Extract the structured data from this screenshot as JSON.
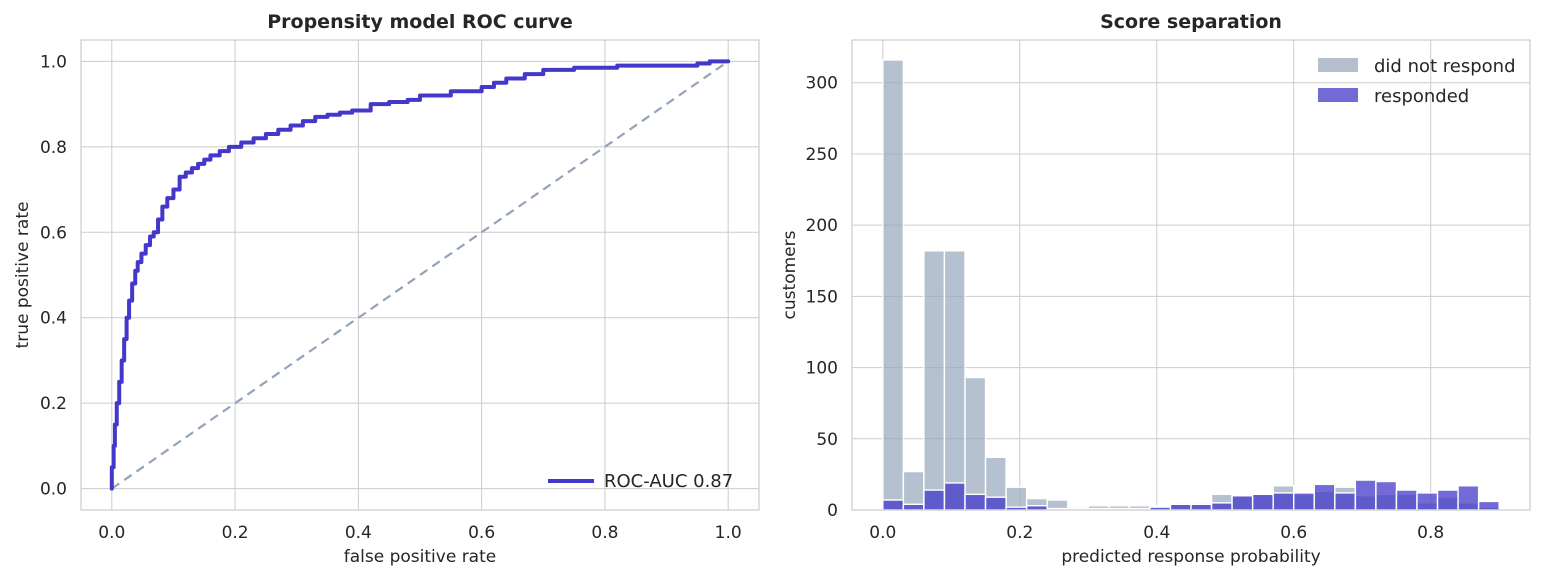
{
  "chart_data": [
    {
      "type": "line",
      "title": "Propensity model ROC curve",
      "xlabel": "false positive rate",
      "ylabel": "true positive rate",
      "xlim": [
        -0.05,
        1.05
      ],
      "ylim": [
        -0.05,
        1.05
      ],
      "xticks": [
        0.0,
        0.2,
        0.4,
        0.6,
        0.8,
        1.0
      ],
      "xtick_labels": [
        "0.0",
        "0.2",
        "0.4",
        "0.6",
        "0.8",
        "1.0"
      ],
      "yticks": [
        0.0,
        0.2,
        0.4,
        0.6,
        0.8,
        1.0
      ],
      "ytick_labels": [
        "0.0",
        "0.2",
        "0.4",
        "0.6",
        "0.8",
        "1.0"
      ],
      "grid": true,
      "legend_position": "lower-right",
      "series": [
        {
          "name": "ROC-AUC 0.87",
          "color": "#4338ca",
          "style": "solid",
          "x": [
            0.0,
            0.0,
            0.003,
            0.005,
            0.008,
            0.012,
            0.016,
            0.02,
            0.024,
            0.028,
            0.033,
            0.038,
            0.042,
            0.048,
            0.055,
            0.062,
            0.068,
            0.075,
            0.082,
            0.09,
            0.1,
            0.11,
            0.12,
            0.13,
            0.14,
            0.15,
            0.16,
            0.175,
            0.19,
            0.21,
            0.23,
            0.25,
            0.27,
            0.29,
            0.31,
            0.33,
            0.35,
            0.37,
            0.39,
            0.42,
            0.45,
            0.48,
            0.5,
            0.55,
            0.6,
            0.62,
            0.64,
            0.67,
            0.7,
            0.75,
            0.8,
            0.82,
            0.85,
            0.9,
            0.95,
            0.97,
            1.0
          ],
          "y": [
            0.0,
            0.05,
            0.1,
            0.15,
            0.2,
            0.25,
            0.3,
            0.35,
            0.4,
            0.44,
            0.48,
            0.51,
            0.53,
            0.55,
            0.57,
            0.59,
            0.6,
            0.63,
            0.66,
            0.68,
            0.7,
            0.73,
            0.74,
            0.75,
            0.76,
            0.77,
            0.78,
            0.79,
            0.8,
            0.81,
            0.82,
            0.83,
            0.84,
            0.85,
            0.86,
            0.87,
            0.875,
            0.88,
            0.885,
            0.9,
            0.905,
            0.91,
            0.92,
            0.93,
            0.94,
            0.95,
            0.96,
            0.97,
            0.98,
            0.985,
            0.985,
            0.99,
            0.99,
            0.99,
            0.995,
            1.0,
            1.0
          ]
        },
        {
          "name": "",
          "color": "#94a3b8",
          "style": "dashed",
          "x": [
            0.0,
            1.0
          ],
          "y": [
            0.0,
            1.0
          ]
        }
      ]
    },
    {
      "type": "bar",
      "subtype": "histogram",
      "title": "Score separation",
      "xlabel": "predicted response probability",
      "ylabel": "customers",
      "xlim": [
        -0.045,
        0.945
      ],
      "ylim": [
        0,
        330
      ],
      "xticks": [
        0.0,
        0.2,
        0.4,
        0.6,
        0.8
      ],
      "xtick_labels": [
        "0.0",
        "0.2",
        "0.4",
        "0.6",
        "0.8"
      ],
      "yticks": [
        0,
        50,
        100,
        150,
        200,
        250,
        300
      ],
      "ytick_labels": [
        "0",
        "50",
        "100",
        "150",
        "200",
        "250",
        "300"
      ],
      "grid": true,
      "legend_position": "top-right",
      "bin_edges": [
        0.0,
        0.03,
        0.06,
        0.09,
        0.12,
        0.15,
        0.18,
        0.21,
        0.24,
        0.27,
        0.3,
        0.33,
        0.36,
        0.39,
        0.42,
        0.45,
        0.48,
        0.51,
        0.54,
        0.57,
        0.6,
        0.63,
        0.66,
        0.69,
        0.72,
        0.75,
        0.78,
        0.81,
        0.84,
        0.87,
        0.9
      ],
      "series": [
        {
          "name": "did not respond",
          "color": "#94a3b8",
          "values": [
            316,
            27,
            182,
            182,
            93,
            37,
            16,
            8,
            7,
            2,
            3,
            3,
            3,
            3,
            5,
            5,
            11,
            10,
            11,
            17,
            11,
            13,
            16,
            10,
            11,
            11,
            5,
            9,
            5,
            2
          ]
        },
        {
          "name": "responded",
          "color": "#4338ca",
          "values": [
            7,
            4,
            14,
            19,
            11,
            9,
            2,
            3,
            1,
            1,
            1,
            1,
            1,
            2,
            4,
            4,
            5,
            10,
            11,
            12,
            12,
            18,
            12,
            21,
            20,
            14,
            12,
            14,
            17,
            6
          ]
        }
      ]
    }
  ]
}
